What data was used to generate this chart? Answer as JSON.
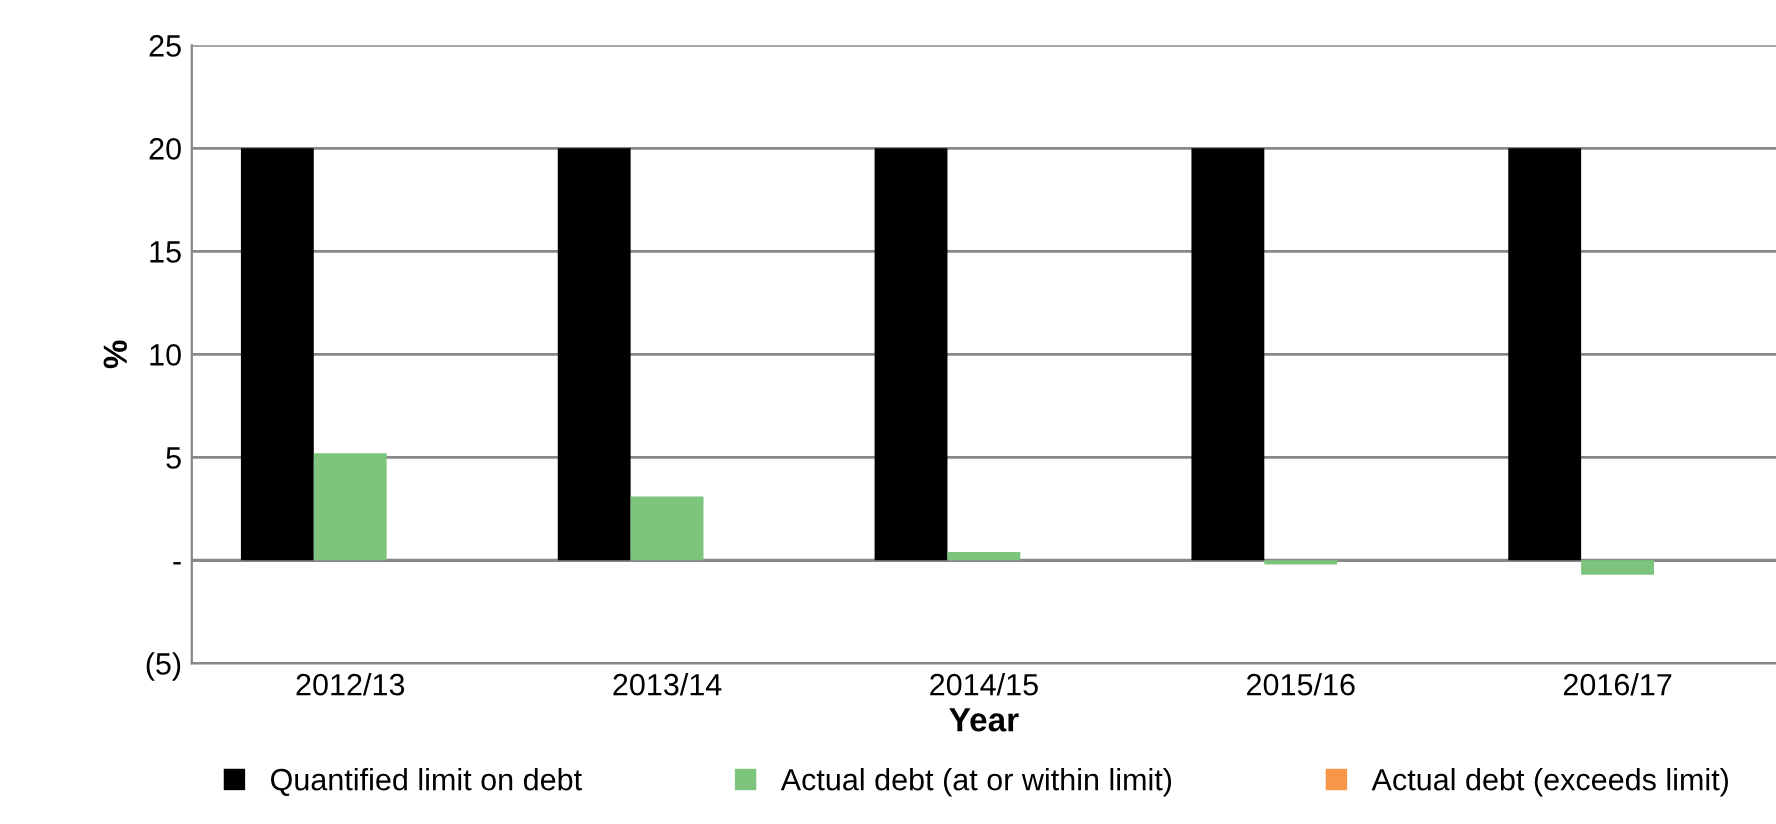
{
  "chart_data": {
    "type": "bar",
    "xlabel": "Year",
    "ylabel": "%",
    "categories": [
      "2012/13",
      "2013/14",
      "2014/15",
      "2015/16",
      "2016/17"
    ],
    "series": [
      {
        "name": "Quantified limit on debt",
        "color": "#000000",
        "values": [
          20,
          20,
          20,
          20,
          20
        ]
      },
      {
        "name": "Actual debt (at or within limit)",
        "color": "#7dc57d",
        "values": [
          5.2,
          3.1,
          0.4,
          -0.2,
          -0.7
        ]
      },
      {
        "name": "Actual debt (exceeds limit)",
        "color": "#f79646",
        "values": [
          null,
          null,
          null,
          null,
          null
        ]
      }
    ],
    "ylim": [
      -5,
      25
    ],
    "yticks": [
      {
        "value": -5,
        "label": "(5)"
      },
      {
        "value": 0,
        "label": "-"
      },
      5,
      10,
      15,
      20,
      25
    ],
    "grid": "y",
    "legend": "bottom"
  }
}
